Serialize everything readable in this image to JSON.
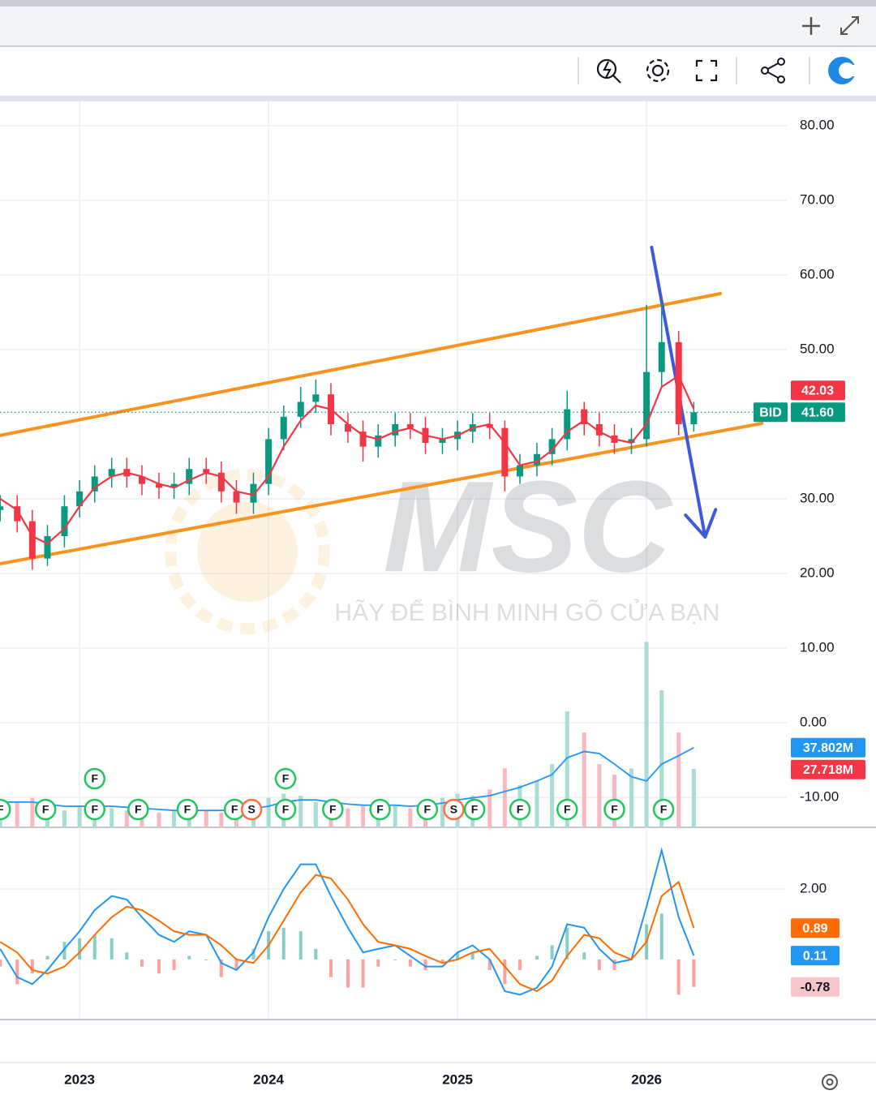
{
  "chart_data": [
    {
      "type": "candlestick",
      "name": "BID",
      "x": [
        2022.58,
        2022.67,
        2022.75,
        2022.83,
        2022.92,
        2023.0,
        2023.08,
        2023.17,
        2023.25,
        2023.33,
        2023.42,
        2023.5,
        2023.58,
        2023.67,
        2023.75,
        2023.83,
        2023.92,
        2024.0,
        2024.08,
        2024.17,
        2024.25,
        2024.33,
        2024.42,
        2024.5,
        2024.58,
        2024.67,
        2024.75,
        2024.83,
        2024.92,
        2025.0,
        2025.08,
        2025.17,
        2025.25,
        2025.33,
        2025.42,
        2025.5,
        2025.58,
        2025.67,
        2025.75,
        2025.83,
        2025.92,
        2026.0,
        2026.08,
        2026.17,
        2026.25
      ],
      "open": [
        28.5,
        29,
        27,
        22,
        25,
        29,
        31,
        33,
        34,
        33,
        32,
        31.5,
        32,
        34,
        33.5,
        31,
        29.5,
        32,
        38,
        41,
        43,
        44,
        40,
        39,
        37,
        38.5,
        40,
        39.5,
        37.5,
        38,
        39,
        40,
        39.5,
        33,
        34.5,
        36,
        38,
        42,
        40,
        38.5,
        37.5,
        38,
        47,
        51,
        40
      ],
      "high": [
        30.5,
        30.5,
        28.5,
        26.5,
        30.5,
        32.5,
        34.5,
        35.5,
        35.5,
        34.5,
        33.5,
        33.5,
        35.5,
        35.5,
        35,
        32.5,
        33.5,
        39.5,
        42.5,
        45,
        46,
        45.5,
        41.5,
        40.5,
        40,
        41.5,
        41.5,
        41,
        39.5,
        40.5,
        41.5,
        41.5,
        40.5,
        36,
        37.5,
        39.5,
        44.5,
        43,
        41.5,
        40,
        39.5,
        56,
        56.5,
        52.5,
        43
      ],
      "low": [
        27,
        25.5,
        20.5,
        21,
        23.5,
        27.5,
        29.5,
        31.5,
        31.5,
        30.5,
        30,
        30,
        30.5,
        32,
        29.5,
        28,
        28,
        30.5,
        36.5,
        39.5,
        41.5,
        38.5,
        37.5,
        35,
        35.5,
        37,
        38,
        36,
        36,
        36.5,
        37.5,
        38,
        31,
        32,
        33,
        34.5,
        36.5,
        38.5,
        37,
        36,
        36,
        37,
        45,
        38.5,
        39
      ],
      "close": [
        29,
        27,
        22,
        25,
        29,
        31,
        33,
        34,
        33,
        32,
        31.5,
        32,
        34,
        33.5,
        31,
        29.5,
        32,
        38,
        41,
        43,
        44,
        40,
        39,
        37,
        38.5,
        40,
        39.5,
        37.5,
        38,
        39,
        40,
        39.5,
        33,
        34.5,
        36,
        38,
        42,
        40,
        38.5,
        37.5,
        38,
        47,
        51,
        40,
        41.6
      ],
      "close_label": "41.60",
      "up_color": "#089981",
      "down_color": "#f23645",
      "ma": {
        "color": "#f23645",
        "values": [
          30,
          28.5,
          25,
          24,
          26,
          29,
          31.5,
          33,
          33.5,
          33,
          32,
          31.5,
          32.5,
          33.5,
          33,
          31,
          30.5,
          33,
          37,
          40.5,
          42.5,
          42,
          40,
          38.5,
          38,
          39,
          39.5,
          38.5,
          38,
          38.5,
          39.5,
          40,
          37.5,
          34.5,
          35,
          36.5,
          39,
          40.5,
          39,
          38,
          37.5,
          40,
          45,
          46.5,
          42.03
        ]
      },
      "xlim": [
        2022.579,
        2026.742
      ],
      "xticks": [
        2023,
        2024,
        2025,
        2026
      ],
      "ylim": [
        -14.02,
        83.26
      ],
      "yticks": [
        {
          "value": 80,
          "label": "80.00"
        },
        {
          "value": 70,
          "label": "70.00"
        },
        {
          "value": 60,
          "label": "60.00"
        },
        {
          "value": 50,
          "label": "50.00"
        },
        {
          "value": 30,
          "label": "30.00"
        },
        {
          "value": 20,
          "label": "20.00"
        },
        {
          "value": 10,
          "label": "10.00"
        },
        {
          "value": 0,
          "label": "0.00"
        },
        {
          "value": -10,
          "label": "-10.00"
        }
      ],
      "grid": true,
      "trendlines": [
        {
          "color": "#f7931e",
          "x": [
            2022.579,
            2026.39
          ],
          "y": [
            38.5,
            57.5
          ]
        },
        {
          "color": "#f7931e",
          "x": [
            2022.579,
            2026.61
          ],
          "y": [
            21.3,
            40.1
          ]
        },
        {
          "color": "#3b5bdb",
          "x": [
            2026.027,
            2026.31
          ],
          "y": [
            63.7,
            24.9
          ],
          "arrow": true
        }
      ],
      "events": [
        {
          "x": 2022.58,
          "label": "F"
        },
        {
          "x": 2022.82,
          "label": "F"
        },
        {
          "x": 2023.08,
          "label": "F"
        },
        {
          "x": 2023.08,
          "label": "F"
        },
        {
          "x": 2023.31,
          "label": "F"
        },
        {
          "x": 2023.57,
          "label": "F"
        },
        {
          "x": 2023.82,
          "label": "F"
        },
        {
          "x": 2023.91,
          "label": "S"
        },
        {
          "x": 2024.09,
          "label": "F"
        },
        {
          "x": 2024.09,
          "label": "F"
        },
        {
          "x": 2024.34,
          "label": "F"
        },
        {
          "x": 2024.59,
          "label": "F"
        },
        {
          "x": 2024.84,
          "label": "F"
        },
        {
          "x": 2024.98,
          "label": "S"
        },
        {
          "x": 2025.09,
          "label": "F"
        },
        {
          "x": 2025.33,
          "label": "F"
        },
        {
          "x": 2025.58,
          "label": "F"
        },
        {
          "x": 2025.83,
          "label": "F"
        },
        {
          "x": 2026.09,
          "label": "F"
        }
      ],
      "watermark": {
        "logo": "MSC",
        "slogan": "HÃY ĐỂ BÌNH MINH GÕ CỬA BẠN"
      }
    },
    {
      "type": "bar",
      "values": [
        10,
        12,
        14,
        9,
        8,
        10,
        12,
        9,
        8,
        7,
        7,
        8,
        9,
        8,
        7,
        9,
        10,
        14,
        16,
        15,
        12,
        10,
        9,
        10,
        11,
        10,
        9,
        12,
        14,
        16,
        15,
        18,
        28,
        20,
        22,
        30,
        55,
        45,
        30,
        25,
        28,
        88,
        65,
        45,
        27.718
      ],
      "last_label": "27.718M",
      "ma": {
        "color": "#2196f3",
        "values": [
          12,
          12,
          12,
          11,
          10,
          10,
          10,
          10,
          9.5,
          9,
          8.5,
          8,
          8,
          8,
          8,
          8.5,
          9,
          10,
          12,
          13,
          13,
          12,
          11,
          10.5,
          10.5,
          10.5,
          10,
          10.5,
          11.5,
          13,
          14,
          15,
          17,
          19,
          22,
          25,
          33,
          36,
          35,
          30,
          24,
          22,
          30,
          34,
          37.802
        ],
        "last_label": "37.802M"
      },
      "up_color": "#a8dcd5",
      "down_color": "#f7b9bf",
      "label_down_color": "#f23645",
      "ylim": [
        0,
        88.5
      ]
    },
    {
      "type": "line",
      "series": [
        {
          "color": "#2196f3",
          "values": [
            0.3,
            -0.5,
            -0.7,
            -0.3,
            0.3,
            0.8,
            1.4,
            1.8,
            1.7,
            1.2,
            0.7,
            0.5,
            0.8,
            0.7,
            -0.1,
            -0.3,
            0.2,
            1.2,
            2.0,
            2.7,
            2.7,
            1.8,
            0.9,
            0.2,
            0.3,
            0.4,
            0.1,
            -0.2,
            -0.2,
            0.2,
            0.4,
            0.0,
            -0.9,
            -1.0,
            -0.8,
            -0.2,
            1.0,
            0.9,
            0.3,
            -0.1,
            0.0,
            1.5,
            3.1,
            1.2,
            0.11
          ]
        },
        {
          "color": "#ff6d00",
          "values": [
            0.5,
            0.2,
            -0.3,
            -0.4,
            -0.2,
            0.2,
            0.7,
            1.2,
            1.5,
            1.4,
            1.1,
            0.8,
            0.7,
            0.7,
            0.4,
            0.0,
            -0.1,
            0.4,
            1.1,
            1.9,
            2.4,
            2.3,
            1.7,
            1.0,
            0.5,
            0.4,
            0.3,
            0.1,
            -0.1,
            0.0,
            0.2,
            0.3,
            -0.2,
            -0.7,
            -0.9,
            -0.6,
            0.1,
            0.7,
            0.6,
            0.2,
            0.0,
            0.5,
            1.8,
            2.2,
            0.89
          ]
        }
      ],
      "histogram": {
        "up_color": "#26a69a",
        "down_color": "#ff5252",
        "label_color": "#f7c6cb",
        "values": [
          -0.2,
          -0.7,
          -0.4,
          0.1,
          0.5,
          0.6,
          0.7,
          0.6,
          0.2,
          -0.2,
          -0.4,
          -0.3,
          0.1,
          0,
          -0.5,
          -0.3,
          0.3,
          0.8,
          0.9,
          0.8,
          0.3,
          -0.5,
          -0.8,
          -0.8,
          -0.2,
          0,
          -0.2,
          -0.3,
          -0.1,
          0.2,
          0.2,
          -0.3,
          -0.7,
          -0.3,
          0.1,
          0.4,
          0.9,
          0.2,
          -0.3,
          -0.3,
          0,
          1.0,
          1.3,
          -1.0,
          -0.78
        ]
      },
      "ylim": [
        -1.66,
        3.75
      ],
      "yticks": [
        {
          "value": 2,
          "label": "2.00"
        }
      ],
      "grid": true
    }
  ]
}
